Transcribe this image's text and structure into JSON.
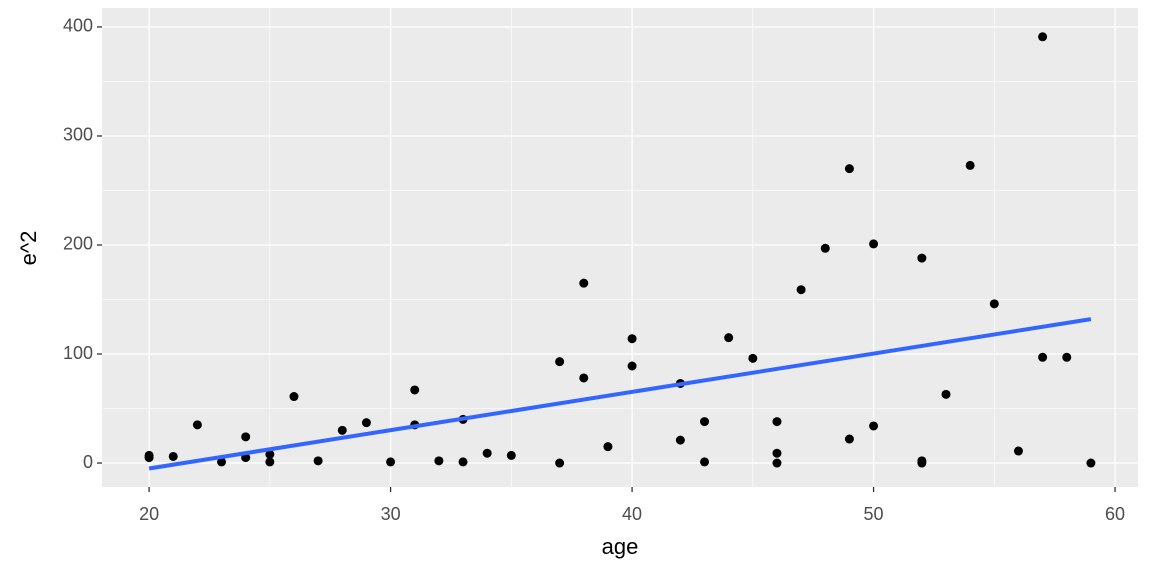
{
  "chart_data": {
    "type": "scatter",
    "x_label": "age",
    "y_label": "e^2",
    "xlim": [
      18.05,
      60.95
    ],
    "ylim": [
      -22,
      417.4
    ],
    "xticks": [
      20,
      30,
      40,
      50,
      60
    ],
    "yticks": [
      0,
      100,
      200,
      300,
      400
    ],
    "grid": true,
    "minor_grid": true,
    "series": [
      {
        "kind": "points",
        "color": "#000000",
        "x": [
          20,
          20,
          21,
          22,
          23,
          24,
          24,
          25,
          25,
          26,
          27,
          28,
          29,
          30,
          31,
          31,
          32,
          33,
          33,
          34,
          35,
          37,
          37,
          38,
          38,
          39,
          40,
          40,
          42,
          42,
          43,
          43,
          44,
          45,
          46,
          46,
          46,
          47,
          48,
          49,
          49,
          50,
          50,
          52,
          52,
          52,
          53,
          54,
          55,
          56,
          57,
          57,
          58,
          59
        ],
        "values": [
          7,
          5,
          6,
          35,
          1,
          24,
          5,
          8,
          1,
          61,
          2,
          30,
          37,
          1,
          67,
          35,
          2,
          40,
          1,
          9,
          7,
          93,
          0,
          165,
          78,
          15,
          114,
          89,
          73,
          21,
          38,
          1,
          115,
          96,
          38,
          9,
          0,
          159,
          197,
          270,
          22,
          201,
          34,
          188,
          2,
          0,
          63,
          273,
          146,
          11,
          391,
          97,
          97,
          0
        ]
      },
      {
        "kind": "line",
        "color": "#3366ff",
        "x": [
          20,
          59
        ],
        "values": [
          -5,
          132
        ]
      }
    ]
  }
}
